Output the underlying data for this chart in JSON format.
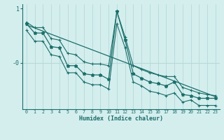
{
  "xlabel": "Humidex (Indice chaleur)",
  "bg_color": "#d4eeee",
  "line_color": "#1a6e6a",
  "grid_color": "#b8d8d8",
  "text_color": "#1a6e6a",
  "x_values": [
    0,
    1,
    2,
    3,
    4,
    5,
    6,
    7,
    8,
    9,
    10,
    11,
    12,
    13,
    14,
    15,
    16,
    17,
    18,
    19,
    20,
    21,
    22,
    23
  ],
  "y_main": [
    0.72,
    0.55,
    0.55,
    0.3,
    0.28,
    -0.05,
    -0.05,
    -0.2,
    -0.22,
    -0.22,
    -0.3,
    0.95,
    0.42,
    -0.2,
    -0.28,
    -0.35,
    -0.38,
    -0.42,
    -0.35,
    -0.58,
    -0.6,
    -0.65,
    -0.65,
    -0.65
  ],
  "y_upper": [
    0.75,
    0.65,
    0.65,
    0.45,
    0.42,
    0.18,
    0.15,
    0.02,
    -0.02,
    -0.02,
    -0.05,
    0.95,
    0.48,
    -0.05,
    -0.12,
    -0.18,
    -0.22,
    -0.25,
    -0.25,
    -0.45,
    -0.5,
    -0.55,
    -0.58,
    -0.6
  ],
  "y_lower": [
    0.6,
    0.4,
    0.4,
    0.15,
    0.12,
    -0.18,
    -0.18,
    -0.35,
    -0.4,
    -0.4,
    -0.48,
    0.72,
    0.28,
    -0.35,
    -0.42,
    -0.52,
    -0.55,
    -0.6,
    -0.55,
    -0.72,
    -0.68,
    -0.78,
    -0.78,
    -0.78
  ],
  "y_trend_start": 0.7,
  "y_trend_end": -0.62,
  "ylim": [
    -0.85,
    1.08
  ],
  "xlim": [
    -0.5,
    23.5
  ],
  "ytick_pos": [
    1.0,
    0.0
  ],
  "ytick_labels": [
    "1",
    "-0"
  ]
}
